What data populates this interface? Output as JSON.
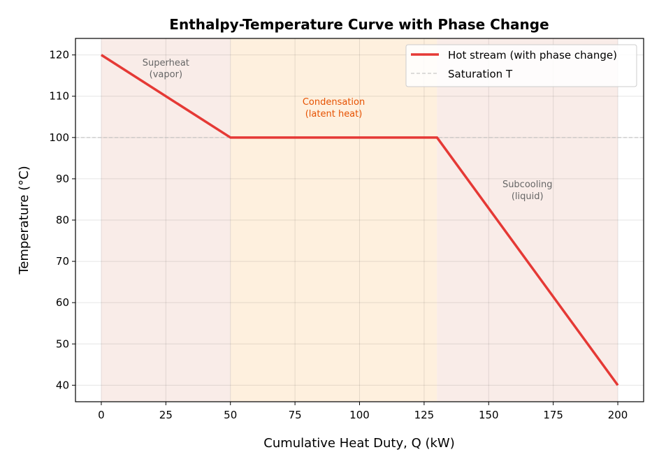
{
  "chart_data": {
    "type": "line",
    "title": "Enthalpy-Temperature Curve with Phase Change",
    "xlabel": "Cumulative Heat Duty, Q (kW)",
    "ylabel": "Temperature (°C)",
    "xlim": [
      -10,
      210
    ],
    "ylim": [
      36,
      124
    ],
    "xticks": [
      0,
      25,
      50,
      75,
      100,
      125,
      150,
      175,
      200
    ],
    "yticks": [
      40,
      50,
      60,
      70,
      80,
      90,
      100,
      110,
      120
    ],
    "grid": true,
    "legend_position": "top-right",
    "series": [
      {
        "name": "Hot stream (with phase change)",
        "color": "#e53935",
        "x": [
          0,
          50,
          130,
          200
        ],
        "y": [
          120,
          100,
          100,
          40
        ]
      }
    ],
    "reference_lines": [
      {
        "name": "Saturation T",
        "y": 100,
        "color": "#bbbbbb",
        "style": "dashed"
      }
    ],
    "regions": [
      {
        "x0": 0,
        "x1": 50,
        "color": "#f9ece8"
      },
      {
        "x0": 50,
        "x1": 130,
        "color": "#fef0de"
      },
      {
        "x0": 130,
        "x1": 200,
        "color": "#f9ece8"
      }
    ],
    "annotations": [
      {
        "lines": [
          "Superheat",
          "(vapor)"
        ],
        "x": 25,
        "y": 117,
        "color": "#666666"
      },
      {
        "lines": [
          "Condensation",
          "(latent heat)"
        ],
        "x": 90,
        "y": 107.5,
        "color": "#e65100"
      },
      {
        "lines": [
          "Subcooling",
          "(liquid)"
        ],
        "x": 165,
        "y": 87.5,
        "color": "#666666"
      }
    ]
  }
}
